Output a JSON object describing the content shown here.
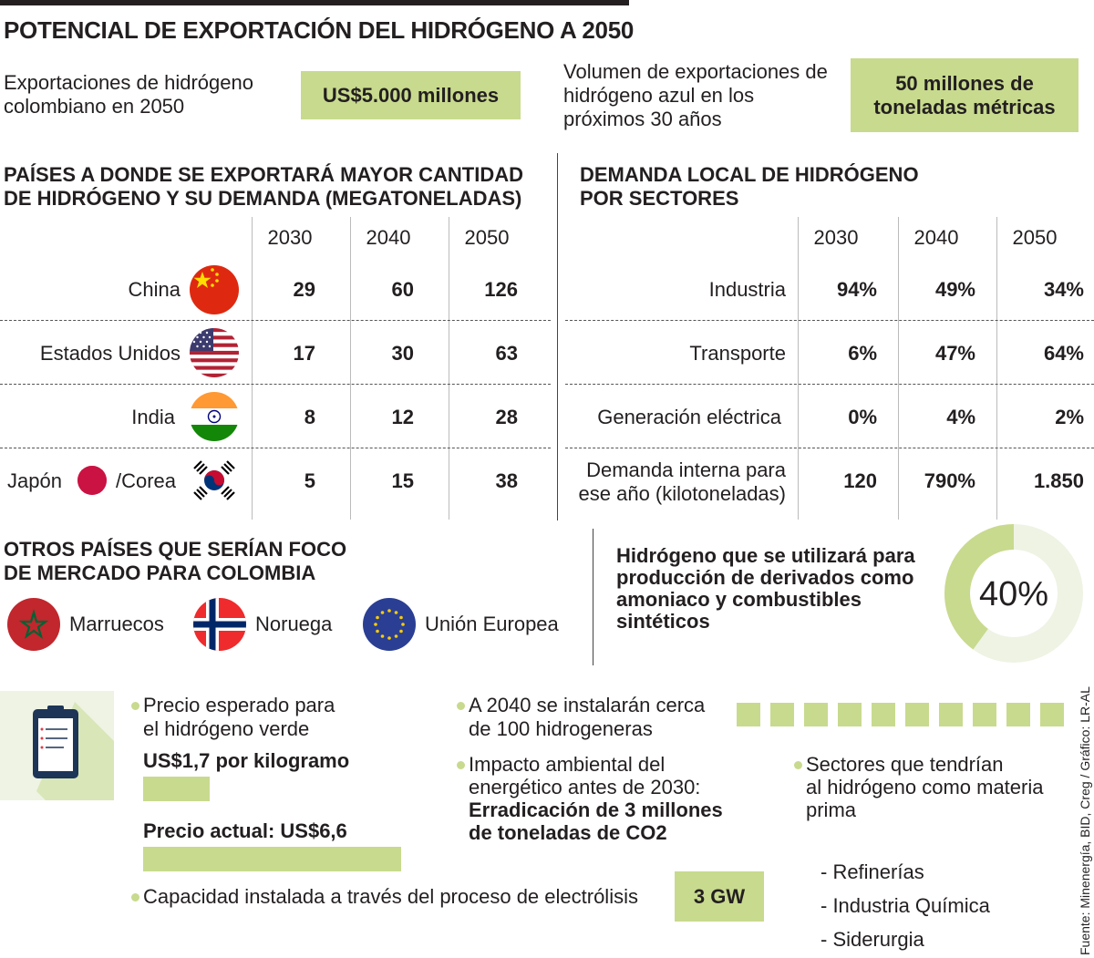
{
  "title": "POTENCIAL DE EXPORTACIÓN DEL HIDRÓGENO A 2050",
  "summary": {
    "exports_label": "Exportaciones de hidrógeno colombiano en 2050",
    "exports_value": "US$5.000 millones",
    "volume_label": "Volumen de exportaciones de hidrógeno azul en los próximos 30 años",
    "volume_value": "50 millones de toneladas métricas"
  },
  "chart_data": [
    {
      "type": "table",
      "title": "PAÍSES A DONDE SE EXPORTARÁ MAYOR CANTIDAD DE HIDRÓGENO Y SU DEMANDA (MEGATONELADAS)",
      "columns": [
        "2030",
        "2040",
        "2050"
      ],
      "rows": [
        {
          "label": "China",
          "values": [
            29,
            60,
            126
          ]
        },
        {
          "label": "Estados Unidos",
          "values": [
            17,
            30,
            63
          ]
        },
        {
          "label": "India",
          "values": [
            8,
            12,
            28
          ]
        },
        {
          "label": "Japón /Corea",
          "values": [
            5,
            15,
            38
          ]
        }
      ]
    },
    {
      "type": "table",
      "title": "DEMANDA LOCAL DE HIDRÓGENO POR SECTORES",
      "columns": [
        "2030",
        "2040",
        "2050"
      ],
      "rows": [
        {
          "label": "Industria",
          "values": [
            "94%",
            "49%",
            "34%"
          ]
        },
        {
          "label": "Transporte",
          "values": [
            "6%",
            "47%",
            "64%"
          ]
        },
        {
          "label": "Generación eléctrica",
          "values": [
            "0%",
            "4%",
            "2%"
          ]
        },
        {
          "label": "Demanda interna para ese año (kilotoneladas)",
          "values": [
            "120",
            "790%",
            "1.850"
          ]
        }
      ]
    },
    {
      "type": "pie",
      "title": "Hidrógeno que se utilizará para producción de derivados como amoniaco y combustibles sintéticos",
      "values": [
        40,
        60
      ],
      "label": "40%"
    },
    {
      "type": "bar",
      "categories": [
        "Precio esperado",
        "Precio actual"
      ],
      "values": [
        1.7,
        6.6
      ],
      "ylabel": "US$ por kilogramo"
    }
  ],
  "exports_table": {
    "title_line1": "PAÍSES A DONDE SE EXPORTARÁ MAYOR CANTIDAD",
    "title_line2": "DE HIDRÓGENO Y SU DEMANDA (MEGATONELADAS)",
    "years": [
      "2030",
      "2040",
      "2050"
    ],
    "rows": [
      {
        "label": "China",
        "v2030": "29",
        "v2040": "60",
        "v2050": "126"
      },
      {
        "label": "Estados Unidos",
        "v2030": "17",
        "v2040": "30",
        "v2050": "63"
      },
      {
        "label": "India",
        "v2030": "8",
        "v2040": "12",
        "v2050": "28"
      },
      {
        "label_a": "Japón",
        "label_b": "/Corea",
        "v2030": "5",
        "v2040": "15",
        "v2050": "38"
      }
    ]
  },
  "demand_table": {
    "title_line1": "DEMANDA LOCAL DE HIDRÓGENO",
    "title_line2": "POR SECTORES",
    "years": [
      "2030",
      "2040",
      "2050"
    ],
    "rows": [
      {
        "label": "Industria",
        "v2030": "94%",
        "v2040": "49%",
        "v2050": "34%"
      },
      {
        "label": "Transporte",
        "v2030": "6%",
        "v2040": "47%",
        "v2050": "64%"
      },
      {
        "label": "Generación eléctrica",
        "v2030": "0%",
        "v2040": "4%",
        "v2050": "2%"
      },
      {
        "label_a": "Demanda interna para",
        "label_b": "ese año (kilotoneladas)",
        "v2030": "120",
        "v2040": "790%",
        "v2050": "1.850"
      }
    ]
  },
  "other_countries": {
    "title_line1": "OTROS PAÍSES QUE SERÍAN FOCO",
    "title_line2": "DE MERCADO PARA COLOMBIA",
    "items": [
      "Marruecos",
      "Noruega",
      "Unión Europea"
    ]
  },
  "derivatives": {
    "line1": "Hidrógeno que se utilizará para",
    "line2": "producción de derivados como",
    "line3": "amoniaco y combustibles",
    "line4": "sintéticos",
    "value": "40%",
    "percent": 40
  },
  "facts": {
    "price_line1": "Precio esperado para",
    "price_line2": "el hidrógeno verde",
    "price_expected": "US$1,7 por kilogramo",
    "price_current": "Precio actual: US$6,6",
    "hydro_line1": "A 2040 se instalarán cerca",
    "hydro_line2": "de 100 hidrogeneras",
    "hydro_squares": 10,
    "impact_line1": "Impacto ambiental del",
    "impact_line2": "energético antes de 2030:",
    "impact_line3": "Erradicación de 3 millones",
    "impact_line4": "de toneladas de CO2",
    "sectors_line1": "Sectores que tendrían",
    "sectors_line2": "al hidrógeno como materia",
    "sectors_line3": "prima",
    "sectors_items": [
      "- Refinerías",
      "- Industria Química",
      "- Siderurgia"
    ],
    "capacity_label": "Capacidad instalada a través del proceso de electrólisis",
    "capacity_value": "3 GW"
  },
  "source": "Fuente: Minenergía, BID, Creg / Gráfico: LR-AL",
  "colors": {
    "accent": "#c8da8e",
    "accent_light": "#eef3e4",
    "text": "#231f20"
  }
}
